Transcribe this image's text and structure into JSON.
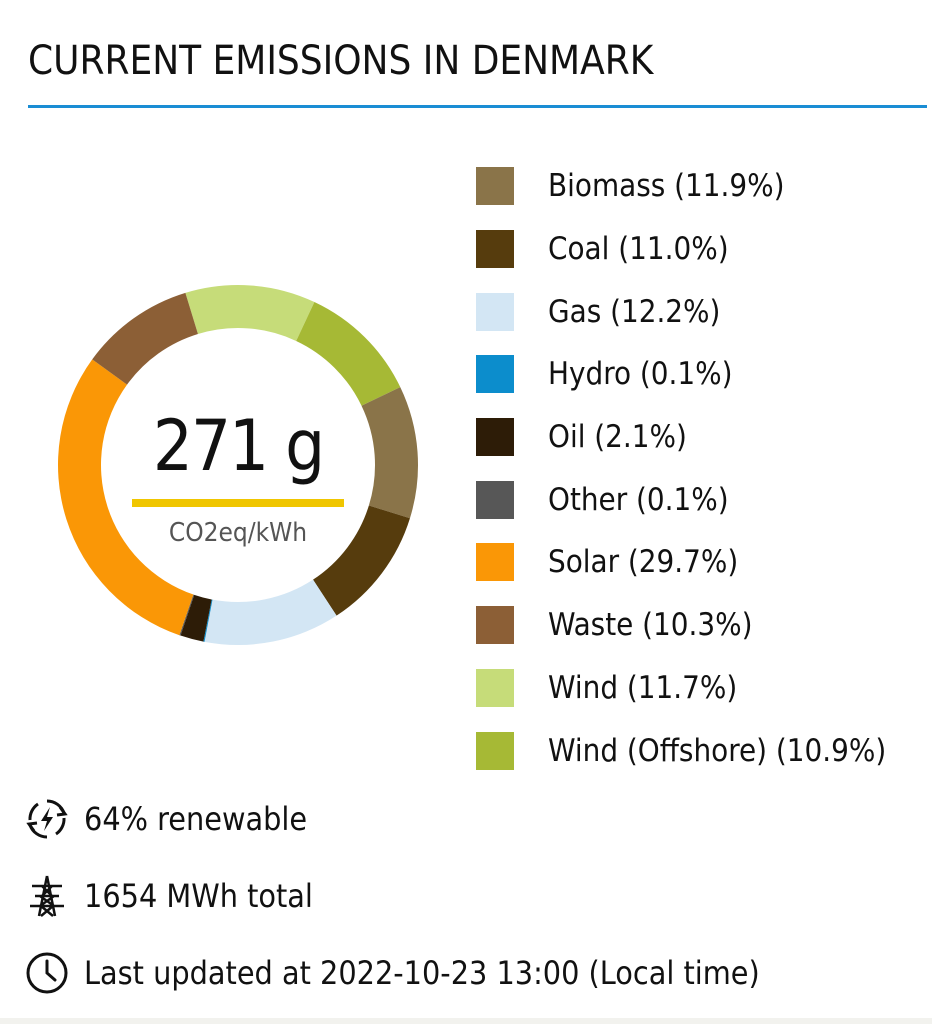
{
  "header": {
    "title": "CURRENT EMISSIONS IN DENMARK"
  },
  "center": {
    "value": "271 g",
    "unit": "CO2eq/kWh"
  },
  "chart_data": {
    "type": "pie",
    "variant": "donut",
    "categories": [
      "Biomass",
      "Coal",
      "Gas",
      "Hydro",
      "Oil",
      "Other",
      "Solar",
      "Waste",
      "Wind",
      "Wind (Offshore)"
    ],
    "values": [
      11.9,
      11.0,
      12.2,
      0.1,
      2.1,
      0.1,
      29.7,
      10.3,
      11.7,
      10.9
    ],
    "legend_labels": [
      "Biomass (11.9%)",
      "Coal (11.0%)",
      "Gas (12.2%)",
      "Hydro (0.1%)",
      "Oil (2.1%)",
      "Other (0.1%)",
      "Solar (29.7%)",
      "Waste (10.3%)",
      "Wind (11.7%)",
      "Wind (Offshore) (10.9%)"
    ],
    "colors": [
      "#8a7449",
      "#563c0d",
      "#d3e6f4",
      "#0c8dcc",
      "#2d1c07",
      "#575757",
      "#fa9706",
      "#8c5f36",
      "#c6dc79",
      "#a6b935"
    ],
    "legend_position": "right"
  },
  "stats": [
    {
      "icon": "renewable-energy-icon",
      "text": "64% renewable"
    },
    {
      "icon": "power-pylon-icon",
      "text": "1654 MWh total"
    },
    {
      "icon": "clock-icon",
      "text": "Last updated at 2022-10-23 13:00 (Local time)"
    }
  ]
}
